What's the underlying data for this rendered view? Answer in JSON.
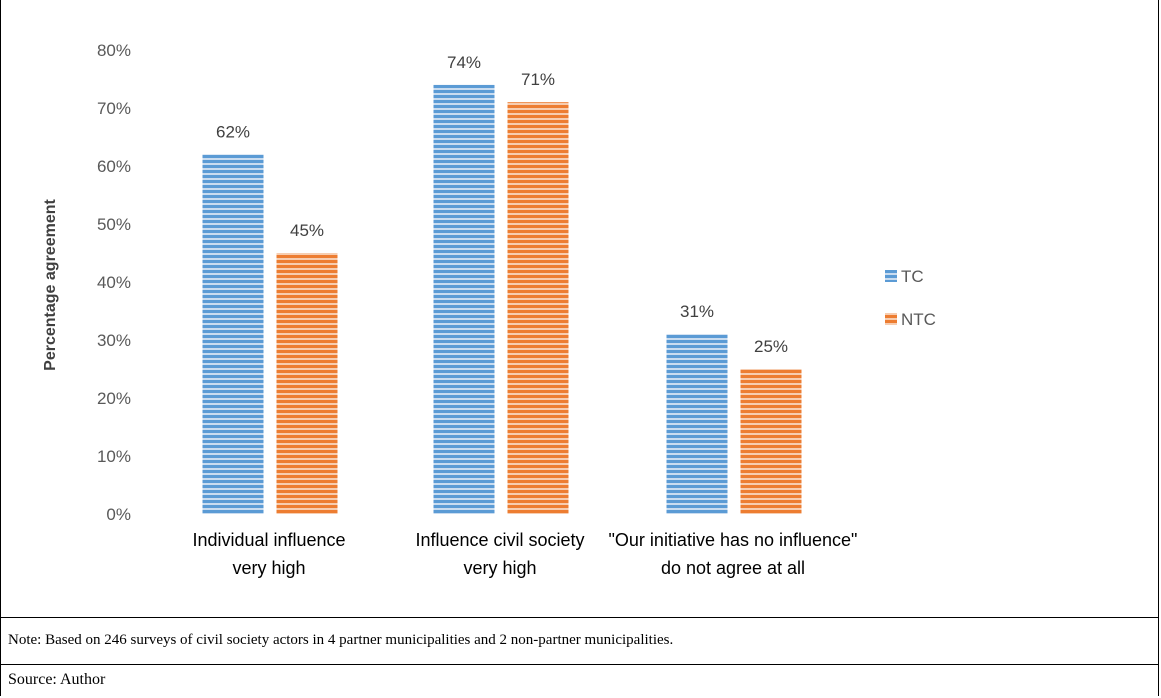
{
  "chart_data": {
    "type": "bar",
    "ylabel": "Percentage agreement",
    "ylim": [
      0,
      80
    ],
    "yticks": [
      "0%",
      "10%",
      "20%",
      "30%",
      "40%",
      "50%",
      "60%",
      "70%",
      "80%"
    ],
    "categories": [
      [
        "Individual influence",
        "very high"
      ],
      [
        "Influence civil society",
        "very high"
      ],
      [
        "\"Our initiative has no influence\"",
        "do not agree at all"
      ]
    ],
    "series": [
      {
        "name": "TC",
        "values": [
          62,
          74,
          31
        ],
        "labels": [
          "62%",
          "74%",
          "31%"
        ],
        "color": "#5b9bd5"
      },
      {
        "name": "NTC",
        "values": [
          45,
          71,
          25
        ],
        "labels": [
          "45%",
          "71%",
          "25%"
        ],
        "color": "#ed7d31"
      }
    ],
    "legend": "right",
    "grid": false
  },
  "note": "Note: Based on 246 surveys of civil society actors in 4 partner municipalities and 2 non-partner municipalities.",
  "source": "Source: Author"
}
